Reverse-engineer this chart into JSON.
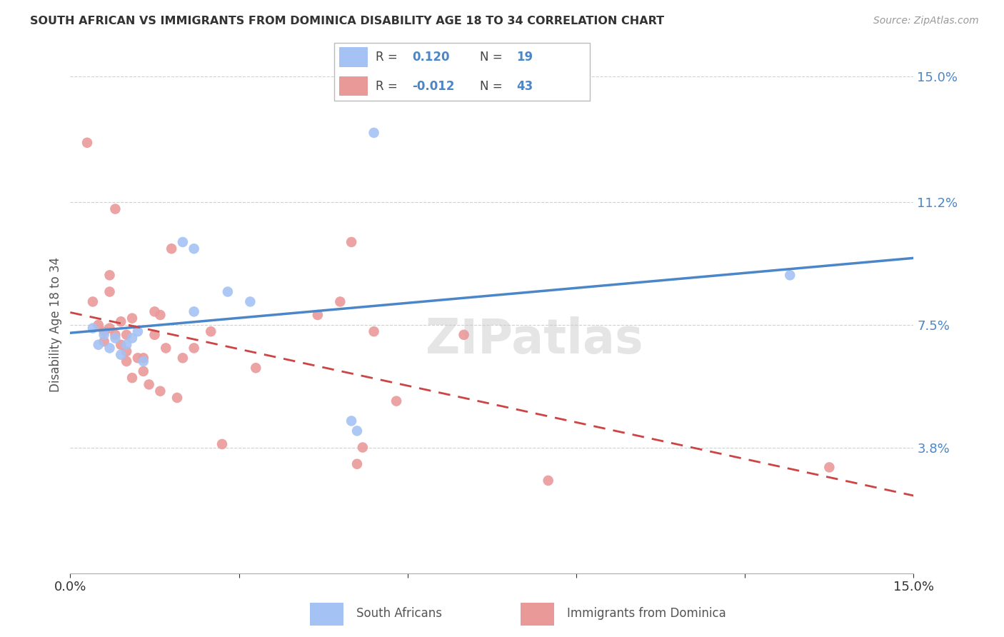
{
  "title": "SOUTH AFRICAN VS IMMIGRANTS FROM DOMINICA DISABILITY AGE 18 TO 34 CORRELATION CHART",
  "source": "Source: ZipAtlas.com",
  "ylabel": "Disability Age 18 to 34",
  "xlim": [
    0.0,
    0.15
  ],
  "ylim": [
    0.0,
    0.15
  ],
  "xticks": [
    0.0,
    0.03,
    0.06,
    0.09,
    0.12,
    0.15
  ],
  "yticks": [
    0.038,
    0.075,
    0.112,
    0.15
  ],
  "xtick_labels": [
    "0.0%",
    "",
    "",
    "",
    "",
    "15.0%"
  ],
  "ytick_labels": [
    "3.8%",
    "7.5%",
    "11.2%",
    "15.0%"
  ],
  "blue_r": "0.120",
  "blue_n": "19",
  "pink_r": "-0.012",
  "pink_n": "43",
  "blue_color": "#a4c2f4",
  "pink_color": "#ea9999",
  "blue_line_color": "#4a86c8",
  "pink_line_color": "#cc4444",
  "blue_scatter_x": [
    0.004,
    0.005,
    0.006,
    0.007,
    0.008,
    0.009,
    0.01,
    0.011,
    0.012,
    0.013,
    0.02,
    0.022,
    0.022,
    0.028,
    0.032,
    0.05,
    0.051,
    0.054,
    0.128
  ],
  "blue_scatter_y": [
    0.074,
    0.069,
    0.072,
    0.068,
    0.071,
    0.066,
    0.069,
    0.071,
    0.073,
    0.064,
    0.1,
    0.098,
    0.079,
    0.085,
    0.082,
    0.046,
    0.043,
    0.133,
    0.09
  ],
  "pink_scatter_x": [
    0.003,
    0.004,
    0.005,
    0.006,
    0.006,
    0.007,
    0.007,
    0.007,
    0.008,
    0.008,
    0.009,
    0.009,
    0.01,
    0.01,
    0.01,
    0.011,
    0.011,
    0.012,
    0.013,
    0.013,
    0.014,
    0.015,
    0.015,
    0.016,
    0.016,
    0.017,
    0.018,
    0.019,
    0.02,
    0.022,
    0.025,
    0.027,
    0.033,
    0.044,
    0.048,
    0.05,
    0.051,
    0.052,
    0.054,
    0.058,
    0.07,
    0.085,
    0.135
  ],
  "pink_scatter_y": [
    0.13,
    0.082,
    0.075,
    0.073,
    0.07,
    0.09,
    0.085,
    0.074,
    0.072,
    0.11,
    0.076,
    0.069,
    0.072,
    0.067,
    0.064,
    0.077,
    0.059,
    0.065,
    0.065,
    0.061,
    0.057,
    0.079,
    0.072,
    0.078,
    0.055,
    0.068,
    0.098,
    0.053,
    0.065,
    0.068,
    0.073,
    0.039,
    0.062,
    0.078,
    0.082,
    0.1,
    0.033,
    0.038,
    0.073,
    0.052,
    0.072,
    0.028,
    0.032
  ],
  "watermark": "ZIPatlas",
  "background_color": "#ffffff",
  "grid_color": "#d0d0d0"
}
